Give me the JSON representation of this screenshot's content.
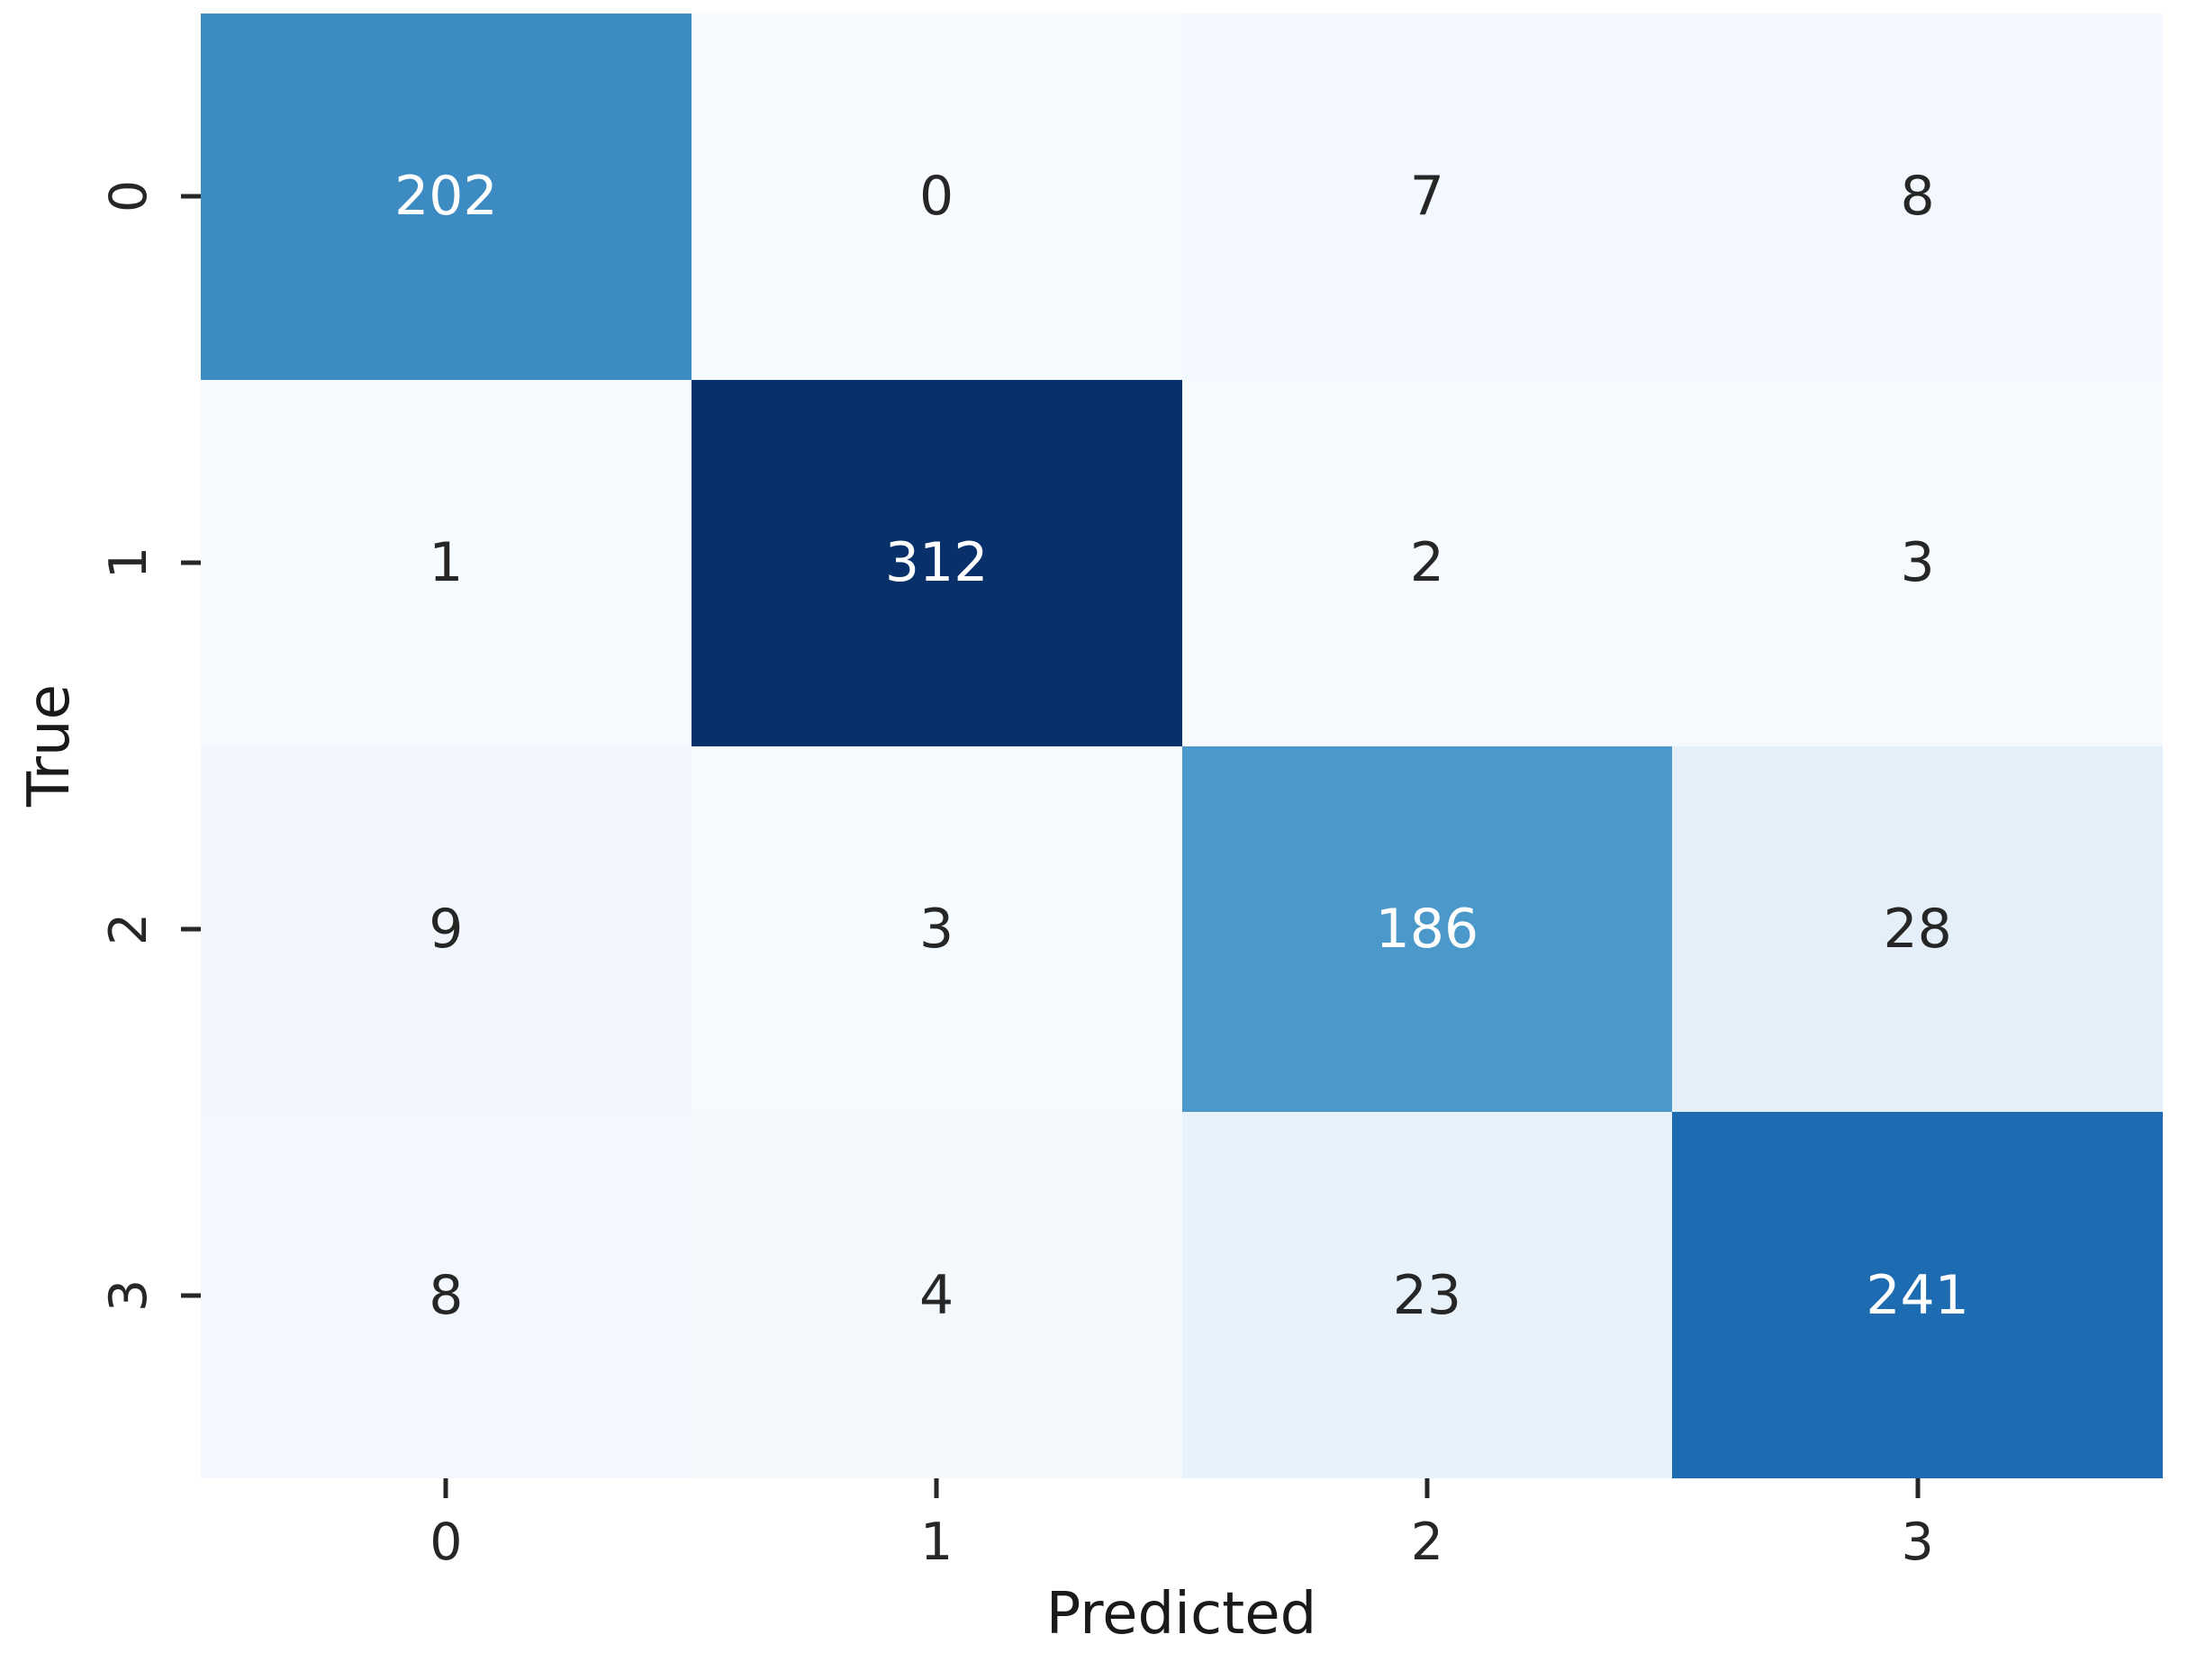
{
  "chart_data": {
    "type": "heatmap",
    "title": "",
    "xlabel": "Predicted",
    "ylabel": "True",
    "x_tick_labels": [
      "0",
      "1",
      "2",
      "3"
    ],
    "y_tick_labels": [
      "0",
      "1",
      "2",
      "3"
    ],
    "matrix": [
      [
        202,
        0,
        7,
        8
      ],
      [
        1,
        312,
        2,
        3
      ],
      [
        9,
        3,
        186,
        28
      ],
      [
        8,
        4,
        23,
        241
      ]
    ],
    "colormap": "Blues",
    "vmin": 0,
    "vmax": 312,
    "legend_position": "none",
    "grid": false,
    "cell_colors": [
      [
        "#3c8cc3",
        "#f7fbff",
        "#f3f8fe",
        "#f2f8fd"
      ],
      [
        "#f6fbff",
        "#08306b",
        "#f6fafe",
        "#f5fafe"
      ],
      [
        "#f1f7fc",
        "#f5fafe",
        "#4b98ca",
        "#e5eff9"
      ],
      [
        "#f2f8fd",
        "#f4f9fe",
        "#e8f2fa",
        "#1d6bb1"
      ]
    ],
    "cell_text_colors": [
      [
        "#ffffff",
        "#262626",
        "#262626",
        "#262626"
      ],
      [
        "#262626",
        "#ffffff",
        "#262626",
        "#262626"
      ],
      [
        "#262626",
        "#262626",
        "#ffffff",
        "#262626"
      ],
      [
        "#262626",
        "#262626",
        "#262626",
        "#ffffff"
      ]
    ]
  },
  "colors": {
    "background": "#ffffff",
    "tick": "#262626",
    "axis_label": "#1a1a1a",
    "annotation_light": "#ffffff",
    "annotation_dark": "#262626"
  }
}
